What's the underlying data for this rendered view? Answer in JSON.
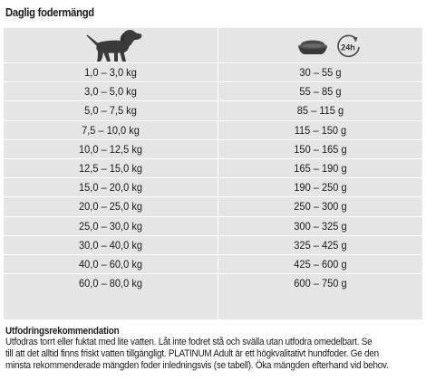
{
  "title": "Daglig fodermängd",
  "icons": {
    "weight": "dog-icon",
    "feed": "food-bowl-icon",
    "period": "24h-clock-icon",
    "period_label": "24h"
  },
  "rows": [
    {
      "weight": "1,0 –   3,0 kg",
      "food": "30 –   55 g"
    },
    {
      "weight": "3,0 –   5,0 kg",
      "food": "55 –   85 g"
    },
    {
      "weight": "5,0 –   7,5 kg",
      "food": "85 – 115 g"
    },
    {
      "weight": "7,5 – 10,0 kg",
      "food": "115 – 150 g"
    },
    {
      "weight": "10,0 – 12,5 kg",
      "food": "150 – 165 g"
    },
    {
      "weight": "12,5 – 15,0 kg",
      "food": "165 – 190 g"
    },
    {
      "weight": "15,0 – 20,0 kg",
      "food": "190 – 250 g"
    },
    {
      "weight": "20,0 – 25,0 kg",
      "food": "250 – 300 g"
    },
    {
      "weight": "25,0 – 30,0 kg",
      "food": "300 – 325 g"
    },
    {
      "weight": "30,0 – 40,0 kg",
      "food": "325 – 425 g"
    },
    {
      "weight": "40,0 – 60,0 kg",
      "food": "425 – 600 g"
    },
    {
      "weight": "60,0 – 80,0 kg",
      "food": "600 – 750 g"
    }
  ],
  "recommendation": {
    "title": "Utfodringsrekommendation",
    "lines": [
      "Utfodras torrt eller fuktat med lite vatten. Låt inte fodret stå och svälla utan utfodra omedelbart. Se",
      "till att det alltid finns friskt vatten tillgängligt. PLATINUM Adult är ett högkvalitativt hundfoder. Ge den",
      "minsta rekommenderade mängden foder inledningsvis (se tabell). Öka mängden efterhand vid behov."
    ]
  }
}
